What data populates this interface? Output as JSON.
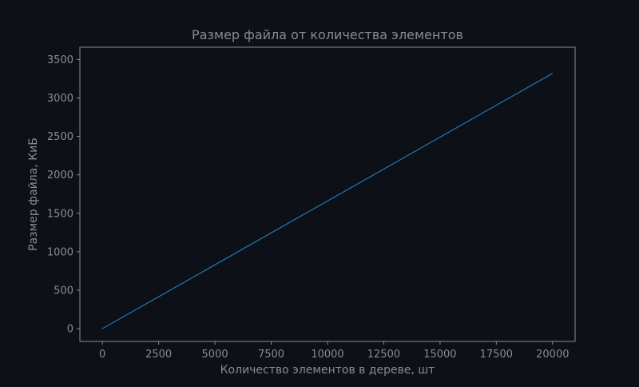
{
  "chart_data": {
    "type": "line",
    "title": "Размер файла от количества элементов",
    "xlabel": "Количество элементов в дереве, шт",
    "ylabel": "Размер файла, КиБ",
    "xlim": [
      -1000,
      21000
    ],
    "ylim": [
      -166,
      3660
    ],
    "x_ticks": [
      0,
      2500,
      5000,
      7500,
      10000,
      12500,
      15000,
      17500,
      20000
    ],
    "y_ticks": [
      0,
      500,
      1000,
      1500,
      2000,
      2500,
      3000,
      3500
    ],
    "grid": false,
    "series": [
      {
        "color": "#1f77b4",
        "x": [
          0,
          20000
        ],
        "y": [
          0,
          3320
        ]
      }
    ]
  },
  "theme": {
    "background": "#0d1117",
    "text_color": "#8b8b8b",
    "frame_color": "#8b8b8b"
  }
}
